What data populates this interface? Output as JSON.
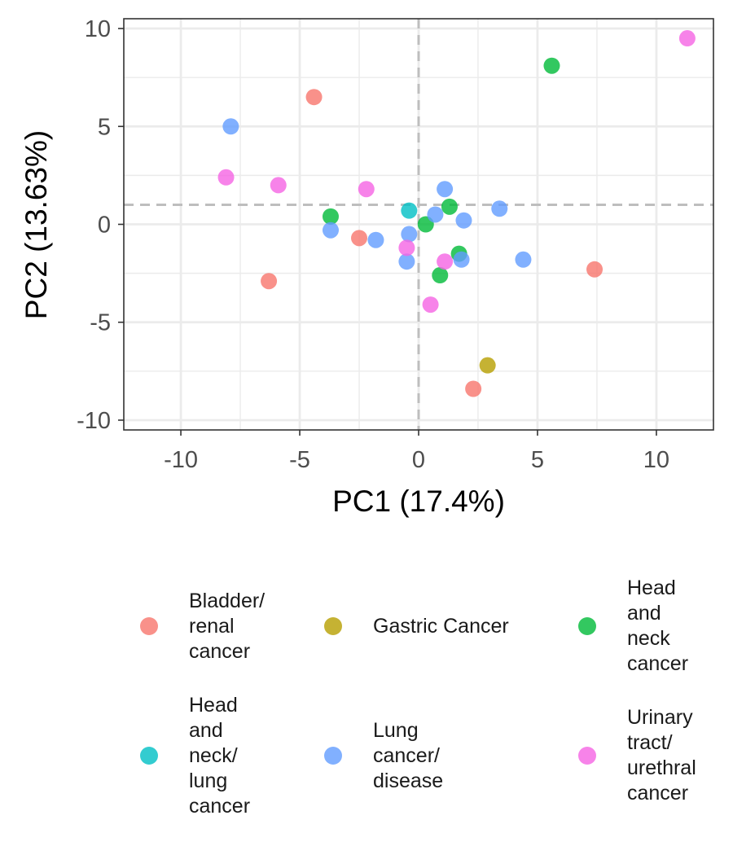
{
  "chart_data": {
    "type": "scatter",
    "xlabel": "PC1 (17.4%)",
    "ylabel": "PC2 (13.63%)",
    "xlim": [
      -12.4,
      12.4
    ],
    "ylim": [
      -10.5,
      10.5
    ],
    "x_ticks": [
      -10,
      -5,
      0,
      5,
      10
    ],
    "y_ticks": [
      -10,
      -5,
      0,
      5,
      10
    ],
    "x_tick_labels": [
      "-10",
      "-5",
      "0",
      "5",
      "10"
    ],
    "y_tick_labels": [
      "-10",
      "-5",
      "0",
      "5",
      "10"
    ],
    "grid": true,
    "reference_lines": {
      "vertical_x": 0,
      "horizontal_y": 1
    },
    "legend_position": "bottom",
    "series": [
      {
        "name": "Bladder/ renal cancer",
        "label_lines": [
          "Bladder/",
          "renal",
          "cancer"
        ],
        "color": "#F8766D",
        "points": [
          [
            -4.4,
            6.5
          ],
          [
            -6.3,
            -2.9
          ],
          [
            -2.5,
            -0.7
          ],
          [
            2.3,
            -8.4
          ],
          [
            7.4,
            -2.3
          ]
        ]
      },
      {
        "name": "Gastric Cancer",
        "label_lines": [
          "Gastric Cancer"
        ],
        "color": "#B79F00",
        "points": [
          [
            2.9,
            -7.2
          ]
        ]
      },
      {
        "name": "Head and neck cancer",
        "label_lines": [
          "Head",
          "and",
          "neck",
          "cancer"
        ],
        "color": "#00BA38",
        "points": [
          [
            5.6,
            8.1
          ],
          [
            -3.7,
            0.4
          ],
          [
            0.3,
            0.0
          ],
          [
            1.3,
            0.9
          ],
          [
            1.7,
            -1.5
          ],
          [
            0.9,
            -2.6
          ]
        ]
      },
      {
        "name": "Head and neck/ lung cancer",
        "label_lines": [
          "Head",
          "and",
          "neck/",
          "lung",
          "cancer"
        ],
        "color": "#00BFC4",
        "points": [
          [
            -0.4,
            0.7
          ]
        ]
      },
      {
        "name": "Lung cancer/ disease",
        "label_lines": [
          "Lung",
          "cancer/",
          "disease"
        ],
        "color": "#619CFF",
        "points": [
          [
            -7.9,
            5.0
          ],
          [
            -3.7,
            -0.3
          ],
          [
            -1.8,
            -0.8
          ],
          [
            -0.4,
            -0.5
          ],
          [
            -0.5,
            -1.9
          ],
          [
            0.7,
            0.5
          ],
          [
            1.1,
            1.8
          ],
          [
            1.9,
            0.2
          ],
          [
            3.4,
            0.8
          ],
          [
            1.8,
            -1.8
          ],
          [
            4.4,
            -1.8
          ]
        ]
      },
      {
        "name": "Urinary tract/ urethral cancer",
        "label_lines": [
          "Urinary",
          "tract/",
          "urethral",
          "cancer"
        ],
        "color": "#F564E3",
        "points": [
          [
            -8.1,
            2.4
          ],
          [
            -5.9,
            2.0
          ],
          [
            -2.2,
            1.8
          ],
          [
            -0.5,
            -1.2
          ],
          [
            1.1,
            -1.9
          ],
          [
            0.5,
            -4.1
          ],
          [
            11.3,
            9.5
          ]
        ]
      }
    ]
  }
}
